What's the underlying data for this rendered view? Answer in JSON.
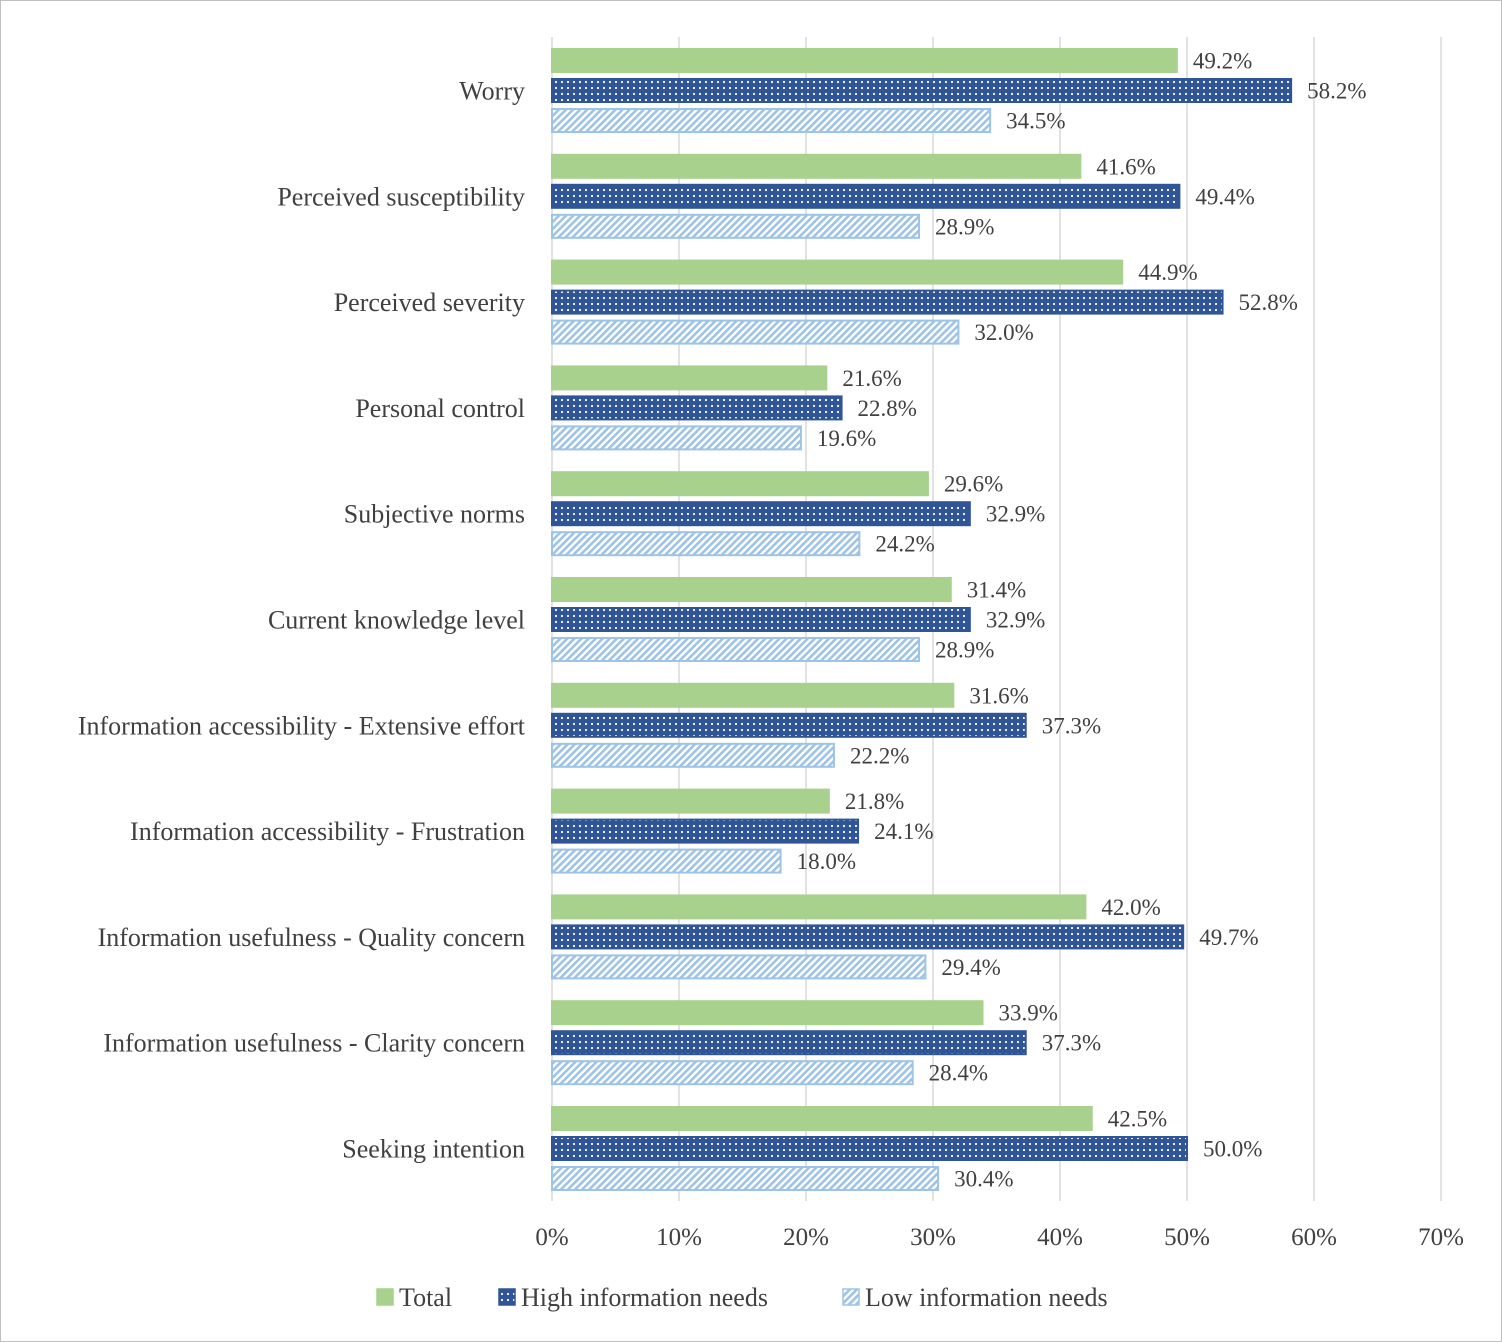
{
  "chart_data": {
    "type": "bar",
    "orientation": "horizontal",
    "title": "",
    "xlabel": "",
    "ylabel": "",
    "xlim": [
      0,
      70
    ],
    "x_ticks": [
      "0%",
      "10%",
      "20%",
      "30%",
      "40%",
      "50%",
      "60%",
      "70%"
    ],
    "grid": true,
    "legend_position": "bottom",
    "categories": [
      "Worry",
      "Perceived susceptibility",
      "Perceived severity",
      "Personal control",
      "Subjective norms",
      "Current knowledge level",
      "Information accessibility - Extensive effort",
      "Information accessibility - Frustration",
      "Information usefulness - Quality concern",
      "Information usefulness - Clarity concern",
      "Seeking intention"
    ],
    "series": [
      {
        "name": "Total",
        "color": "#a9d18e",
        "pattern": "solid",
        "values": [
          49.2,
          41.6,
          44.9,
          21.6,
          29.6,
          31.4,
          31.6,
          21.8,
          42.0,
          33.9,
          42.5
        ],
        "labels": [
          "49.2%",
          "41.6%",
          "44.9%",
          "21.6%",
          "29.6%",
          "31.4%",
          "31.6%",
          "21.8%",
          "42.0%",
          "33.9%",
          "42.5%"
        ]
      },
      {
        "name": "High information needs",
        "color": "#2f5597",
        "pattern": "dots",
        "values": [
          58.2,
          49.4,
          52.8,
          22.8,
          32.9,
          32.9,
          37.3,
          24.1,
          49.7,
          37.3,
          50.0
        ],
        "labels": [
          "58.2%",
          "49.4%",
          "52.8%",
          "22.8%",
          "32.9%",
          "32.9%",
          "37.3%",
          "24.1%",
          "49.7%",
          "37.3%",
          "50.0%"
        ]
      },
      {
        "name": "Low information needs",
        "color": "#9dc3e6",
        "pattern": "diagonal-stripes",
        "values": [
          34.5,
          28.9,
          32.0,
          19.6,
          24.2,
          28.9,
          22.2,
          18.0,
          29.4,
          28.4,
          30.4
        ],
        "labels": [
          "34.5%",
          "28.9%",
          "32.0%",
          "19.6%",
          "24.2%",
          "28.9%",
          "22.2%",
          "18.0%",
          "29.4%",
          "28.4%",
          "30.4%"
        ]
      }
    ]
  }
}
